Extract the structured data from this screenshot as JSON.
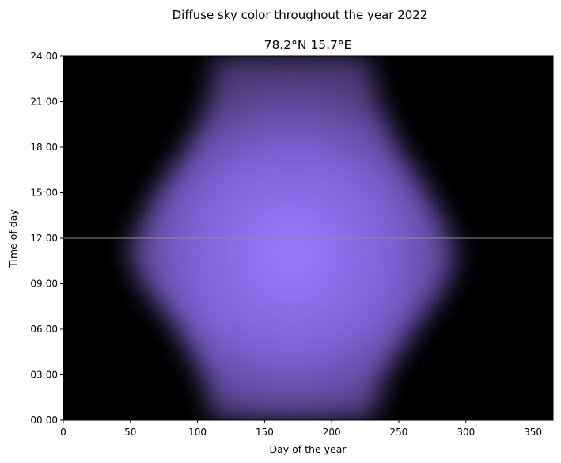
{
  "chart_data": {
    "type": "heatmap",
    "suptitle": "Diffuse sky color throughout the year 2022",
    "title": "78.2°N 15.7°E",
    "xlabel": "Day of the year",
    "ylabel": "Time of day",
    "xlim": [
      0,
      365
    ],
    "ylim": [
      0,
      24
    ],
    "xticks": [
      0,
      50,
      100,
      150,
      200,
      250,
      300,
      350
    ],
    "yticks": [
      0,
      3,
      6,
      9,
      12,
      15,
      18,
      21,
      24
    ],
    "ytick_labels": [
      "00:00",
      "03:00",
      "06:00",
      "09:00",
      "12:00",
      "15:00",
      "18:00",
      "21:00",
      "24:00"
    ],
    "noon_line_hour": 12,
    "colors": {
      "background": "#000000",
      "peak": "#9B7BFF",
      "noon_line": "#8C8C8C"
    },
    "envelope": {
      "peak_day": 170,
      "peak_hour": 11,
      "boundary_points": [
        {
          "hour": 0,
          "day_start": 112,
          "day_end": 230
        },
        {
          "hour": 3,
          "day_start": 103,
          "day_end": 240
        },
        {
          "hour": 6,
          "day_start": 85,
          "day_end": 262
        },
        {
          "hour": 9,
          "day_start": 58,
          "day_end": 287
        },
        {
          "hour": 11,
          "day_start": 48,
          "day_end": 293
        },
        {
          "hour": 12,
          "day_start": 52,
          "day_end": 290
        },
        {
          "hour": 15,
          "day_start": 68,
          "day_end": 272
        },
        {
          "hour": 18,
          "day_start": 92,
          "day_end": 250
        },
        {
          "hour": 21,
          "day_start": 108,
          "day_end": 235
        },
        {
          "hour": 24,
          "day_start": 112,
          "day_end": 228
        }
      ]
    }
  }
}
